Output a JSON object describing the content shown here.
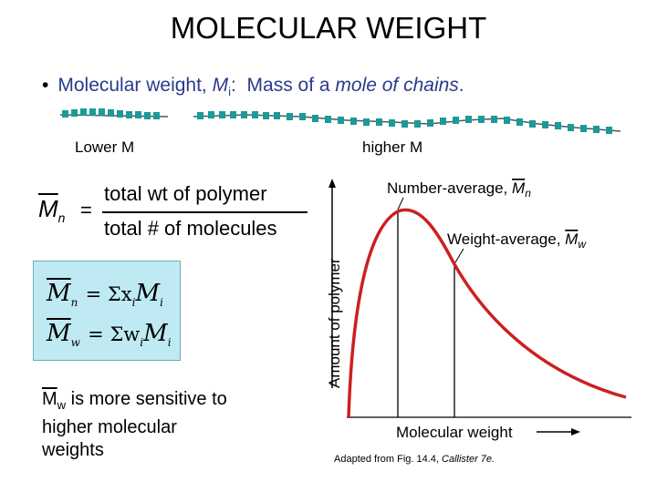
{
  "title": "MOLECULAR WEIGHT",
  "bullet": {
    "dot": "•",
    "prefix": "Molecular weight, ",
    "symbol": "M",
    "subscript": "i",
    "colon": ":",
    "mass_of": "Mass of a ",
    "mole_of_chains": "mole of chains",
    "period": "."
  },
  "chains": {
    "lower_label": "Lower M",
    "higher_label": "higher M"
  },
  "number_average_formula": {
    "lhs": "M",
    "lhs_sub": "n",
    "equals": "=",
    "numerator": "total wt of polymer",
    "denominator": "total # of molecules"
  },
  "equations": {
    "mn_lhs": "M",
    "mn_sub": "n",
    "mn_rhs": "= Σx",
    "mn_rhs_sub": "i",
    "mn_rhs_end": "M",
    "mn_rhs_end_sub": "i",
    "mw_lhs": "M",
    "mw_sub": "w",
    "mw_rhs": "= Σw",
    "mw_rhs_sub": "i",
    "mw_rhs_end": "M",
    "mw_rhs_end_sub": "i"
  },
  "note": {
    "symbol": "M",
    "sub": "w",
    "text1": " is more sensitive to",
    "text2": "higher molecular",
    "text3": "weights"
  },
  "graph": {
    "y_label": "Amount of polymer",
    "x_label": "Molecular weight",
    "number_average_label": "Number-average, ",
    "number_average_symbol": "M",
    "number_average_sub": "n",
    "weight_average_label": "Weight-average, ",
    "weight_average_symbol": "M",
    "weight_average_sub": "w"
  },
  "caption": {
    "prefix": "Adapted from Fig. 14.4, ",
    "source": "Callister 7e."
  },
  "colors": {
    "bullet_text": "#2a3a8c",
    "chain_bead": "#1a9a9a",
    "chain_line": "#555555",
    "box_fill": "#bfeaf3",
    "curve": "#cc2020"
  }
}
